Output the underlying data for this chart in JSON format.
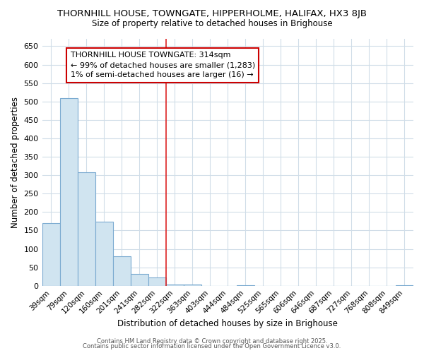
{
  "title": "THORNHILL HOUSE, TOWNGATE, HIPPERHOLME, HALIFAX, HX3 8JB",
  "subtitle": "Size of property relative to detached houses in Brighouse",
  "xlabel": "Distribution of detached houses by size in Brighouse",
  "ylabel": "Number of detached properties",
  "bar_color": "#d0e4f0",
  "bar_edge_color": "#7aaad0",
  "background_color": "#ffffff",
  "plot_bg_color": "#ffffff",
  "grid_color": "#d0dde8",
  "vline_color": "#dd2222",
  "annotation_box_edge_color": "#cc0000",
  "categories": [
    "39sqm",
    "79sqm",
    "120sqm",
    "160sqm",
    "201sqm",
    "241sqm",
    "282sqm",
    "322sqm",
    "363sqm",
    "403sqm",
    "444sqm",
    "484sqm",
    "525sqm",
    "565sqm",
    "606sqm",
    "646sqm",
    "687sqm",
    "727sqm",
    "768sqm",
    "808sqm",
    "849sqm"
  ],
  "values": [
    170,
    510,
    308,
    173,
    80,
    33,
    22,
    3,
    3,
    0,
    0,
    2,
    0,
    0,
    0,
    0,
    0,
    0,
    0,
    0,
    2
  ],
  "annotation_text": "THORNHILL HOUSE TOWNGATE: 314sqm\n← 99% of detached houses are smaller (1,283)\n1% of semi-detached houses are larger (16) →",
  "vline_x_index": 7,
  "ylim": [
    0,
    670
  ],
  "yticks": [
    0,
    50,
    100,
    150,
    200,
    250,
    300,
    350,
    400,
    450,
    500,
    550,
    600,
    650
  ],
  "footer1": "Contains HM Land Registry data © Crown copyright and database right 2025.",
  "footer2": "Contains public sector information licensed under the Open Government Licence v3.0.",
  "figsize": [
    6.0,
    5.0
  ],
  "dpi": 100
}
